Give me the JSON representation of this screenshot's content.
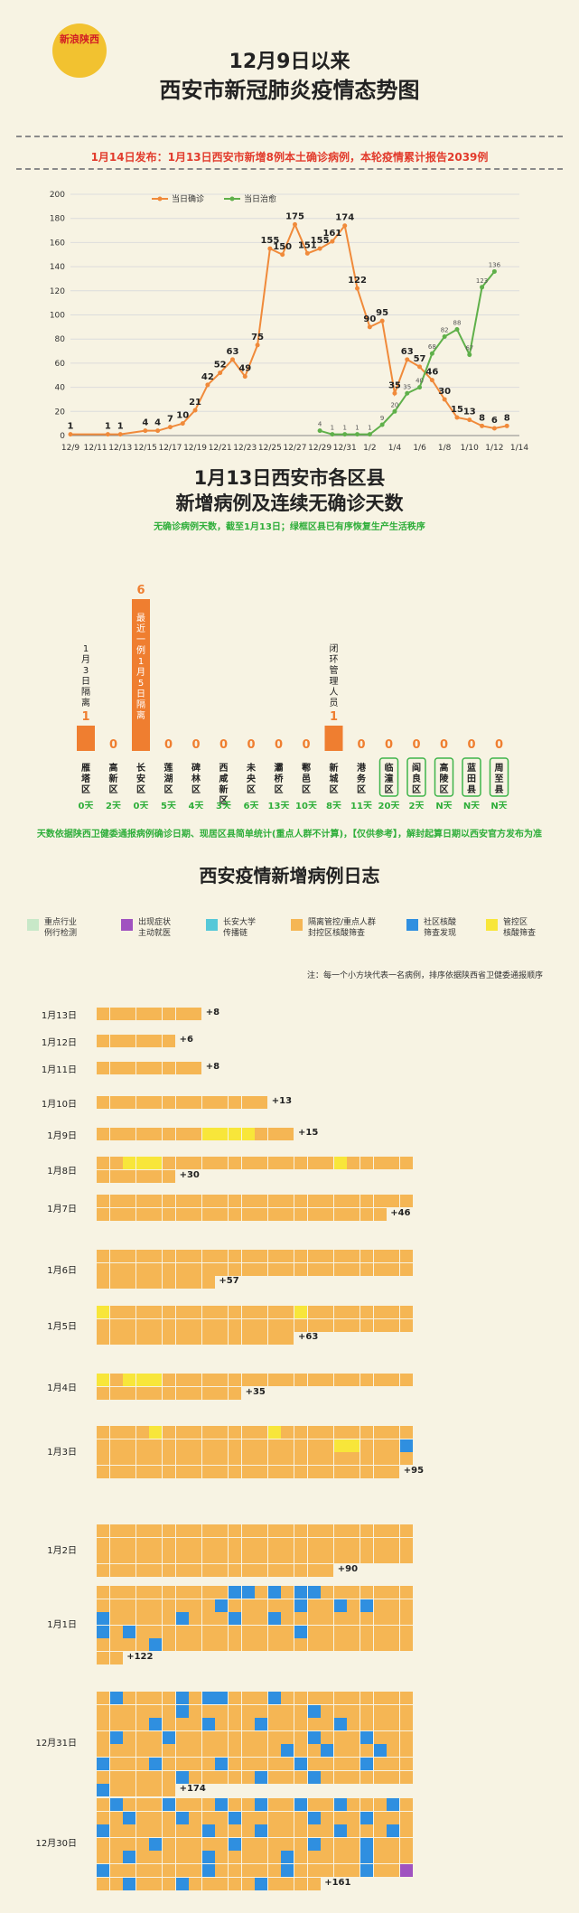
{
  "header": {
    "logo_text": "新浪陕西",
    "title_line1": "12月9日以来",
    "title_line2": "西安市新冠肺炎疫情态势图",
    "notice": "1月14日发布：1月13日西安市新增8例本土确诊病例，本轮疫情累计报告2039例"
  },
  "chart_data": [
    {
      "type": "line",
      "title": "",
      "xlabel": "",
      "ylabel": "",
      "ylim": [
        0,
        200
      ],
      "yticks": [
        0,
        20,
        40,
        60,
        80,
        100,
        120,
        140,
        160,
        180,
        200
      ],
      "grid": true,
      "legend_position": "top",
      "x_tick_labels": [
        "12/9",
        "12/11",
        "12/13",
        "12/15",
        "12/17",
        "12/19",
        "12/21",
        "12/23",
        "12/25",
        "12/27",
        "12/29",
        "12/31",
        "1/2",
        "1/4",
        "1/6",
        "1/8",
        "1/10",
        "1/12",
        "1/14"
      ],
      "series": [
        {
          "name": "当日确诊",
          "color": "#f08a3a",
          "x": [
            "12/9",
            "12/12",
            "12/13",
            "12/15",
            "12/16",
            "12/17",
            "12/18",
            "12/19",
            "12/20",
            "12/21",
            "12/22",
            "12/23",
            "12/24",
            "12/25",
            "12/26",
            "12/27",
            "12/28",
            "12/29",
            "12/30",
            "12/31",
            "1/1",
            "1/2",
            "1/3",
            "1/4",
            "1/5",
            "1/6",
            "1/7",
            "1/8",
            "1/9",
            "1/10",
            "1/11",
            "1/12",
            "1/13"
          ],
          "values": [
            1,
            1,
            1,
            4,
            4,
            7,
            10,
            21,
            42,
            52,
            63,
            49,
            75,
            155,
            150,
            175,
            151,
            155,
            161,
            174,
            122,
            90,
            95,
            35,
            63,
            57,
            46,
            30,
            15,
            13,
            8,
            6,
            8
          ]
        },
        {
          "name": "当日治愈",
          "color": "#5fb04a",
          "x": [
            "12/29",
            "12/30",
            "12/31",
            "1/1",
            "1/2",
            "1/3",
            "1/4",
            "1/5",
            "1/6",
            "1/7",
            "1/8",
            "1/9",
            "1/10",
            "1/11",
            "1/12"
          ],
          "values": [
            4,
            1,
            1,
            1,
            1,
            9,
            20,
            35,
            40,
            68,
            82,
            88,
            67,
            123,
            136
          ]
        }
      ]
    },
    {
      "type": "bar",
      "title": "1月13日西安市各区县新增病例及连续无确诊天数",
      "categories": [
        "雁塔区",
        "高新区",
        "长安区",
        "莲湖区",
        "碑林区",
        "西咸新区",
        "未央区",
        "灞桥区",
        "鄠邑区",
        "新城区",
        "港务区",
        "临潼区",
        "阎良区",
        "高陵区",
        "蓝田县",
        "周至县"
      ],
      "values": [
        1,
        0,
        6,
        0,
        0,
        0,
        0,
        0,
        0,
        1,
        0,
        0,
        0,
        0,
        0,
        0
      ],
      "days_without_cases": [
        "0天",
        "2天",
        "0天",
        "5天",
        "4天",
        "3天",
        "6天",
        "13天",
        "10天",
        "8天",
        "11天",
        "20天",
        "2天",
        "N天",
        "N天",
        "N天"
      ],
      "bar_annotations": {
        "雁塔区": "1月3日隔离",
        "长安区": "最近一例1月5日隔离",
        "新城区": "闭环管理人员"
      },
      "green_districts": [
        "临潼区",
        "阎良区",
        "高陵区",
        "蓝田县",
        "周至县"
      ]
    }
  ],
  "section2": {
    "title_line1": "1月13日西安市各区县",
    "title_line2": "新增病例及连续无确诊天数",
    "subtitle": "无确诊病例天数，截至1月13日；绿框区县已有序恢复生产生活秩序",
    "footnote": "天数依据陕西卫健委通报病例确诊日期、现居区县简单统计(重点人群不计算)，【仅供参考】，解封起算日期以西安官方发布为准"
  },
  "log": {
    "title": "西安疫情新增病例日志",
    "annotation": "注：每一个小方块代表一名病例，排序依据陕西省卫健委通报顺序",
    "legend": [
      {
        "label": "重点行业\n例行检测",
        "color": "#c8e8c8"
      },
      {
        "label": "出现症状\n主动就医",
        "color": "#a052c0"
      },
      {
        "label": "长安大学\n传播链",
        "color": "#56c8d8"
      },
      {
        "label": "隔离管控/重点人群\n封控区核酸筛查",
        "color": "#f5b654"
      },
      {
        "label": "社区核酸\n筛查发现",
        "color": "#2f8fe0"
      },
      {
        "label": "管控区\n核酸筛查",
        "color": "#f8e63a"
      }
    ],
    "days": [
      {
        "date": "1月13日",
        "count": 8,
        "plus": "+8"
      },
      {
        "date": "1月12日",
        "count": 6,
        "plus": "+6"
      },
      {
        "date": "1月11日",
        "count": 8,
        "plus": "+8"
      },
      {
        "date": "1月10日",
        "count": 13,
        "plus": "+13"
      },
      {
        "date": "1月9日",
        "count": 15,
        "plus": "+15"
      },
      {
        "date": "1月8日",
        "count": 30,
        "plus": "+30"
      },
      {
        "date": "1月7日",
        "count": 46,
        "plus": "+46"
      },
      {
        "date": "1月6日",
        "count": 57,
        "plus": "+57"
      },
      {
        "date": "1月5日",
        "count": 63,
        "plus": "+63"
      },
      {
        "date": "1月4日",
        "count": 35,
        "plus": "+35"
      },
      {
        "date": "1月3日",
        "count": 95,
        "plus": "+95"
      },
      {
        "date": "1月2日",
        "count": 90,
        "plus": "+90"
      },
      {
        "date": "1月1日",
        "count": 122,
        "plus": "+122"
      },
      {
        "date": "12月31日",
        "count": 174,
        "plus": "+174"
      },
      {
        "date": "12月30日",
        "count": 161,
        "plus": "+161"
      }
    ]
  }
}
